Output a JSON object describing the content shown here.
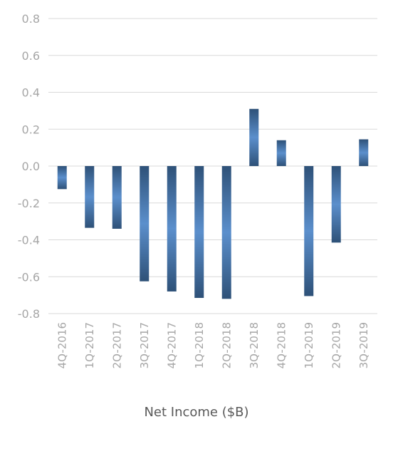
{
  "chart_data": {
    "type": "bar",
    "title": "",
    "xlabel": "Net Income ($B)",
    "ylabel": "",
    "ylim": [
      -0.8,
      0.8
    ],
    "yticks": [
      "0.8",
      "0.6",
      "0.4",
      "0.2",
      "0.0",
      "-0.2",
      "-0.4",
      "-0.6",
      "-0.8"
    ],
    "ytick_values": [
      0.8,
      0.6,
      0.4,
      0.2,
      0.0,
      -0.2,
      -0.4,
      -0.6,
      -0.8
    ],
    "grid": true,
    "legend": "none",
    "bar_color": "#4f81bd",
    "categories": [
      "4Q-2016",
      "1Q-2017",
      "2Q-2017",
      "3Q-2017",
      "4Q-2017",
      "1Q-2018",
      "2Q-2018",
      "3Q-2018",
      "4Q-2018",
      "1Q-2019",
      "2Q-2019",
      "3Q-2019"
    ],
    "values": [
      -0.125,
      -0.335,
      -0.34,
      -0.625,
      -0.68,
      -0.715,
      -0.72,
      0.31,
      0.14,
      -0.705,
      -0.415,
      0.145
    ]
  }
}
